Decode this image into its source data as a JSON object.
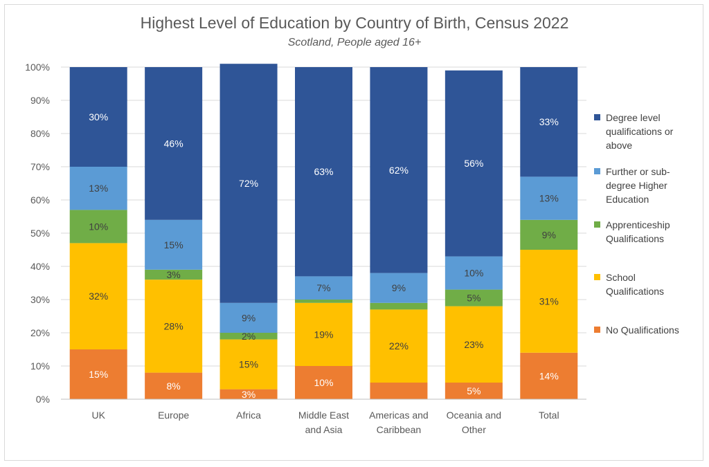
{
  "chart_data": {
    "type": "bar",
    "stacked": true,
    "title": "Highest Level of Education by Country of Birth, Census 2022",
    "subtitle": "Scotland, People aged 16+",
    "categories": [
      "UK",
      "Europe",
      "Africa",
      "Middle East\nand Asia",
      "Americas and\nCaribbean",
      "Oceania and\nOther",
      "Total"
    ],
    "ylim": [
      0,
      100
    ],
    "yticks": [
      "0%",
      "10%",
      "20%",
      "30%",
      "40%",
      "50%",
      "60%",
      "70%",
      "80%",
      "90%",
      "100%"
    ],
    "grid": true,
    "legend_position": "right",
    "series": [
      {
        "name": "No Qualifications",
        "color": "#ED7D31",
        "label_color": "#ffffff",
        "values": [
          15,
          8,
          3,
          10,
          5,
          5,
          14
        ],
        "labels": [
          "15%",
          "8%",
          "3%",
          "10%",
          "",
          "5%",
          "14%"
        ]
      },
      {
        "name": "School Qualifications",
        "color": "#FFC000",
        "label_color": "#404040",
        "values": [
          32,
          28,
          15,
          19,
          22,
          23,
          31
        ],
        "labels": [
          "32%",
          "28%",
          "15%",
          "19%",
          "22%",
          "23%",
          "31%"
        ]
      },
      {
        "name": "Apprenticeship Qualifications",
        "color": "#70AD47",
        "label_color": "#404040",
        "values": [
          10,
          3,
          2,
          1,
          2,
          5,
          9
        ],
        "labels": [
          "10%",
          "3%",
          "2%",
          "",
          "",
          "5%",
          "9%"
        ]
      },
      {
        "name": "Further or sub-degree Higher Education",
        "color": "#5B9BD5",
        "label_color": "#404040",
        "values": [
          13,
          15,
          9,
          7,
          9,
          10,
          13
        ],
        "labels": [
          "13%",
          "15%",
          "9%",
          "7%",
          "9%",
          "10%",
          "13%"
        ]
      },
      {
        "name": "Degree level qualifications or above",
        "color": "#2F5597",
        "label_color": "#ffffff",
        "values": [
          30,
          46,
          72,
          63,
          62,
          56,
          33
        ],
        "labels": [
          "30%",
          "46%",
          "72%",
          "63%",
          "62%",
          "56%",
          "33%"
        ]
      }
    ],
    "legend": [
      {
        "label": "Degree level qualifications or above",
        "color": "#2F5597"
      },
      {
        "label": "Further or sub-degree Higher Education",
        "color": "#5B9BD5"
      },
      {
        "label": "Apprenticeship Qualifications",
        "color": "#70AD47"
      },
      {
        "label": "School Qualifications",
        "color": "#FFC000"
      },
      {
        "label": "No Qualifications",
        "color": "#ED7D31"
      }
    ]
  }
}
